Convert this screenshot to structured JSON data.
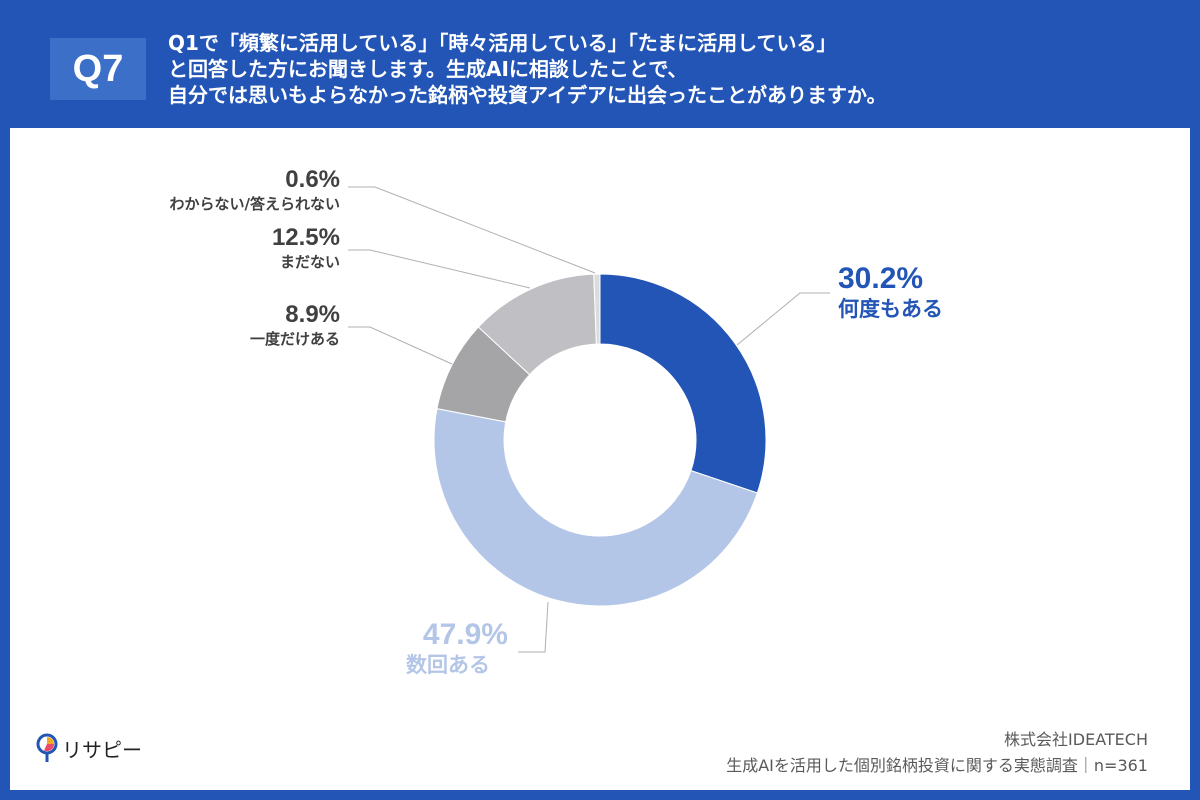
{
  "header": {
    "badge": "Q7",
    "question": "Q1で「頻繁に活用している」「時々活用している」「たまに活用している」\nと回答した方にお聞きします。生成AIに相談したことで、\n自分では思いもよらなかった銘柄や投資アイデアに出会ったことがありますか。"
  },
  "chart_data": {
    "type": "pie",
    "donut": true,
    "unit": "%",
    "slices": [
      {
        "label": "何度もある",
        "value": 30.2,
        "display": "30.2%",
        "color": "#2255b5"
      },
      {
        "label": "数回ある",
        "value": 47.9,
        "display": "47.9%",
        "color": "#b4c6e7"
      },
      {
        "label": "一度だけある",
        "value": 8.9,
        "display": "8.9%",
        "color": "#a5a5a8"
      },
      {
        "label": "まだない",
        "value": 12.5,
        "display": "12.5%",
        "color": "#c0bfc4"
      },
      {
        "label": "わからない/答えられない",
        "value": 0.6,
        "display": "0.6%",
        "color": "#dcdcdc"
      }
    ]
  },
  "footer": {
    "company": "株式会社IDEATECH",
    "survey": "生成AIを活用した個別銘柄投資に関する実態調査｜n=361"
  },
  "logo": {
    "text": "リサピー"
  }
}
